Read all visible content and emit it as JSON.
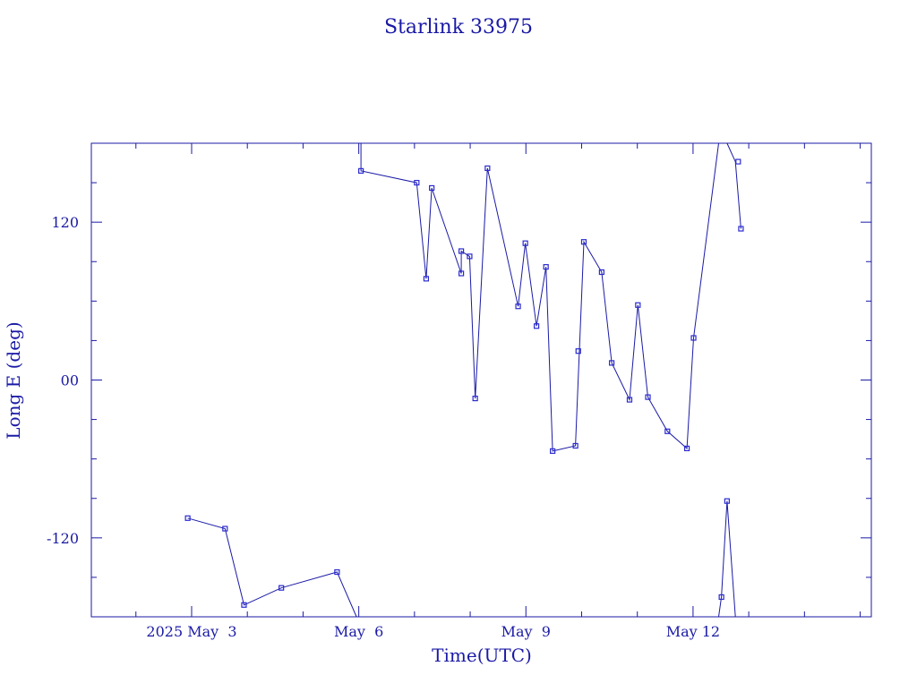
{
  "chart_data": {
    "type": "line",
    "title": "Starlink 33975",
    "xlabel": "Time(UTC)",
    "ylabel": "Long E (deg)",
    "xlim": [
      1.2,
      15.2
    ],
    "ylim": [
      -180,
      180
    ],
    "x_ticks": [
      {
        "value": 3,
        "label": "2025 May  3"
      },
      {
        "value": 6,
        "label": "May  6"
      },
      {
        "value": 9,
        "label": "May  9"
      },
      {
        "value": 12,
        "label": "May 12"
      }
    ],
    "y_ticks": [
      {
        "value": 120,
        "label": "120"
      },
      {
        "value": 0,
        "label": "00"
      },
      {
        "value": -120,
        "label": "-120"
      }
    ],
    "line_color": "#1a1aa6",
    "marker_color": "#2a2ad0",
    "segments": [
      {
        "x": [
          2.93,
          3.6,
          3.94,
          4.61,
          5.61,
          5.96
        ],
        "y": [
          -105,
          -113,
          -171,
          -158,
          -146,
          -180
        ]
      },
      {
        "x": [
          6.04,
          6.04,
          7.04,
          7.21,
          7.31,
          7.84,
          7.84,
          7.99,
          8.09,
          8.31,
          8.86,
          8.99,
          9.19,
          9.36,
          9.48,
          9.89,
          10.04,
          10.36,
          10.54,
          10.86,
          11.01,
          11.19,
          11.54,
          11.89,
          12.01,
          12.46
        ],
        "y": [
          180,
          159,
          150,
          77,
          146,
          81,
          98,
          94,
          -14,
          161,
          56,
          104,
          41,
          86,
          -54,
          -50,
          105,
          82,
          13,
          -15,
          57,
          -13,
          -39,
          -52,
          32,
          180
        ]
      },
      {
        "x": [
          12.46,
          12.51,
          12.61
        ],
        "y": [
          -180,
          -165,
          -92
        ]
      },
      {
        "x": [
          12.61,
          12.76
        ],
        "y": [
          -92,
          -180
        ]
      },
      {
        "x": [
          12.61,
          12.76,
          12.86
        ],
        "y": [
          180,
          166,
          115
        ]
      }
    ],
    "points": [
      {
        "x": 2.93,
        "y": -105
      },
      {
        "x": 3.6,
        "y": -113
      },
      {
        "x": 3.94,
        "y": -171
      },
      {
        "x": 4.61,
        "y": -158
      },
      {
        "x": 5.61,
        "y": -146
      },
      {
        "x": 6.04,
        "y": 159
      },
      {
        "x": 7.04,
        "y": 150
      },
      {
        "x": 7.21,
        "y": 77
      },
      {
        "x": 7.31,
        "y": 146
      },
      {
        "x": 7.84,
        "y": 81
      },
      {
        "x": 7.84,
        "y": 98
      },
      {
        "x": 7.99,
        "y": 94
      },
      {
        "x": 8.09,
        "y": -14
      },
      {
        "x": 8.31,
        "y": 161
      },
      {
        "x": 8.86,
        "y": 56
      },
      {
        "x": 8.99,
        "y": 104
      },
      {
        "x": 9.19,
        "y": 41
      },
      {
        "x": 9.36,
        "y": 86
      },
      {
        "x": 9.48,
        "y": -54
      },
      {
        "x": 9.89,
        "y": -50
      },
      {
        "x": 9.94,
        "y": 22
      },
      {
        "x": 10.04,
        "y": 105
      },
      {
        "x": 10.36,
        "y": 82
      },
      {
        "x": 10.54,
        "y": 13
      },
      {
        "x": 10.86,
        "y": -15
      },
      {
        "x": 11.01,
        "y": 57
      },
      {
        "x": 11.19,
        "y": -13
      },
      {
        "x": 11.54,
        "y": -39
      },
      {
        "x": 11.89,
        "y": -52
      },
      {
        "x": 12.01,
        "y": 32
      },
      {
        "x": 12.51,
        "y": -165
      },
      {
        "x": 12.61,
        "y": -92
      },
      {
        "x": 12.81,
        "y": 166
      },
      {
        "x": 12.86,
        "y": 115
      }
    ]
  }
}
